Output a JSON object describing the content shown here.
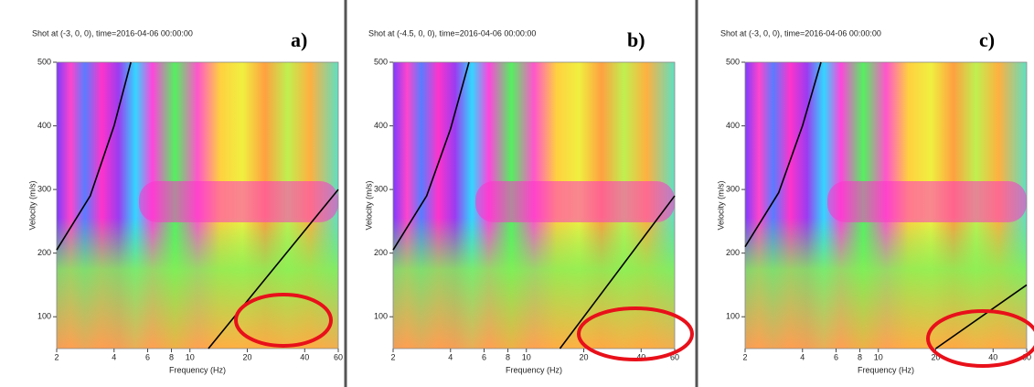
{
  "chart_data": [
    {
      "type": "line",
      "panel_label": "a)",
      "title": "Shot at (-3, 0, 0), time=2016-04-06 00:00:00",
      "x_label": "Frequency (Hz)",
      "y_label": "Velocity (m/s)",
      "x_scale": "log",
      "xlim": [
        2,
        60
      ],
      "ylim": [
        50,
        500
      ],
      "xticks": [
        2,
        4,
        6,
        8,
        10,
        20,
        40,
        60
      ],
      "yticks": [
        100,
        200,
        300,
        400,
        500
      ],
      "series": [
        {
          "color": "#000000",
          "x": [
            2,
            3,
            4,
            4.9
          ],
          "values": [
            205,
            290,
            400,
            500
          ]
        },
        {
          "color": "#000000",
          "x": [
            12.5,
            60
          ],
          "values": [
            50,
            300
          ]
        }
      ]
    },
    {
      "type": "line",
      "panel_label": "b)",
      "title": "Shot at (-4.5, 0, 0), time=2016-04-06 00:00:00",
      "x_label": "Frequency (Hz)",
      "y_label": "Velocity (m/s)",
      "x_scale": "log",
      "xlim": [
        2,
        60
      ],
      "ylim": [
        50,
        500
      ],
      "xticks": [
        2,
        4,
        6,
        8,
        10,
        20,
        40,
        60
      ],
      "yticks": [
        100,
        200,
        300,
        400,
        500
      ],
      "series": [
        {
          "color": "#000000",
          "x": [
            2,
            3,
            4,
            5
          ],
          "values": [
            205,
            290,
            395,
            500
          ]
        },
        {
          "color": "#000000",
          "x": [
            15,
            60
          ],
          "values": [
            50,
            290
          ]
        }
      ]
    },
    {
      "type": "line",
      "panel_label": "c)",
      "title": "Shot at (-3, 0, 0), time=2016-04-06 00:00:00",
      "x_label": "Frequency (Hz)",
      "y_label": "Velocity (m/s)",
      "x_scale": "log",
      "xlim": [
        2,
        60
      ],
      "ylim": [
        50,
        500
      ],
      "xticks": [
        2,
        4,
        6,
        8,
        10,
        20,
        40,
        60
      ],
      "yticks": [
        100,
        200,
        300,
        400,
        500
      ],
      "series": [
        {
          "color": "#000000",
          "x": [
            2,
            3,
            4,
            5
          ],
          "values": [
            210,
            295,
            400,
            500
          ]
        },
        {
          "color": "#000000",
          "x": [
            20,
            60
          ],
          "values": [
            50,
            150
          ]
        }
      ]
    }
  ]
}
